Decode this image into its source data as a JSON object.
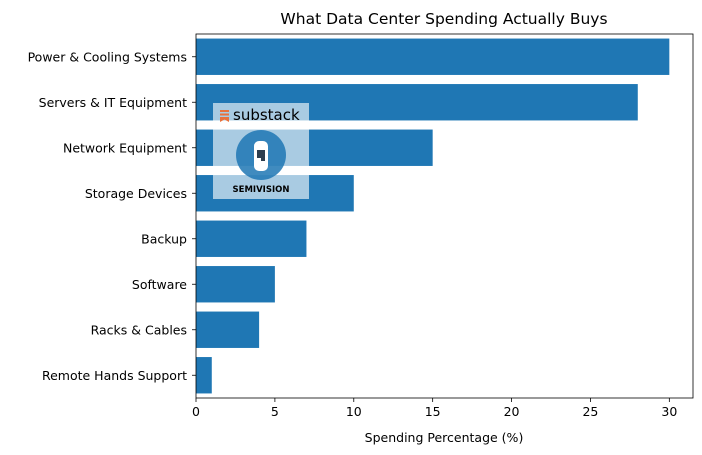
{
  "chart_data": {
    "type": "bar",
    "orientation": "horizontal",
    "title": "What Data Center Spending Actually Buys",
    "xlabel": "Spending Percentage (%)",
    "ylabel": "",
    "xlim": [
      0,
      31.5
    ],
    "xticks": [
      0,
      5,
      10,
      15,
      20,
      25,
      30
    ],
    "grid": false,
    "categories": [
      "Power & Cooling Systems",
      "Servers & IT Equipment",
      "Network Equipment",
      "Storage Devices",
      "Backup",
      "Software",
      "Racks & Cables",
      "Remote Hands Support"
    ],
    "values": [
      30,
      28,
      15,
      10,
      7,
      5,
      4,
      1
    ],
    "bar_color": "#1f77b4"
  },
  "watermark": {
    "brand": "substack",
    "caption": "SEMIVISION",
    "accent": "#e8713c",
    "logo_color": "#1f77b4"
  }
}
